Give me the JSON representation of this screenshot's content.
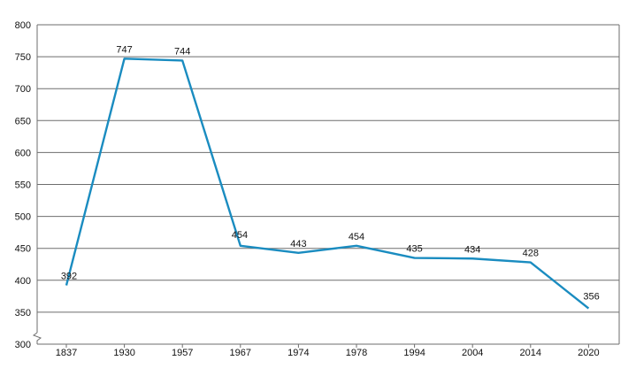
{
  "chart_data": {
    "type": "line",
    "title": "",
    "xlabel": "",
    "ylabel": "",
    "categories": [
      "1837",
      "1930",
      "1957",
      "1967",
      "1974",
      "1978",
      "1994",
      "2004",
      "2014",
      "2020"
    ],
    "series": [
      {
        "values": [
          392,
          747,
          744,
          454,
          443,
          454,
          435,
          434,
          428,
          356
        ]
      }
    ],
    "data_labels": [
      "392",
      "747",
      "744",
      "454",
      "443",
      "454",
      "435",
      "434",
      "428",
      "356"
    ],
    "y_ticks": [
      "300",
      "350",
      "400",
      "450",
      "500",
      "550",
      "600",
      "650",
      "700",
      "750",
      "800"
    ],
    "ylim": [
      300,
      800
    ],
    "y_axis_break": true,
    "grid": "horizontal",
    "legend": "none",
    "colors": {
      "line": "#1a8cc0",
      "grid": "#6e6e6e",
      "axis": "#6e6e6e",
      "text": "#111111"
    }
  }
}
